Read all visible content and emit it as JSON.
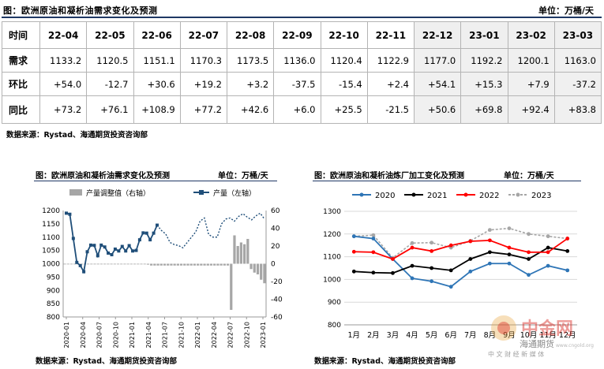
{
  "header": {
    "title": "图：欧洲原油和凝析油需求变化及预测",
    "unit": "单位：万桶/天"
  },
  "table": {
    "corner": "时间",
    "columns": [
      "22-04",
      "22-05",
      "22-06",
      "22-07",
      "22-08",
      "22-09",
      "22-10",
      "22-11",
      "22-12",
      "23-01",
      "23-02",
      "23-03"
    ],
    "rows": [
      {
        "label": "需求",
        "values": [
          "1133.2",
          "1120.5",
          "1151.1",
          "1170.3",
          "1173.5",
          "1136.0",
          "1120.4",
          "1122.9",
          "1177.0",
          "1192.2",
          "1200.1",
          "1163.0"
        ]
      },
      {
        "label": "环比",
        "values": [
          "+54.0",
          "-12.7",
          "+30.6",
          "+19.2",
          "+3.2",
          "-37.5",
          "-15.4",
          "+2.4",
          "+54.1",
          "+15.3",
          "+7.9",
          "-37.2"
        ]
      },
      {
        "label": "同比",
        "values": [
          "+73.2",
          "+76.1",
          "+108.9",
          "+77.2",
          "+42.6",
          "+6.0",
          "+25.5",
          "-21.5",
          "+50.6",
          "+69.8",
          "+92.4",
          "+83.8"
        ]
      }
    ]
  },
  "source_top": "数据来源：Rystad、海通期货投资咨询部",
  "left_chart": {
    "title": "图：欧洲原油和凝析油需求变化及预测",
    "unit": "单位：万桶/天",
    "source": "数据来源：Rystad、海通期货投资咨询部"
  },
  "right_chart": {
    "title": "图：欧洲原油和凝析油炼厂加工变化及预测",
    "unit": "单位：万桶/天",
    "source": "数据来源：Rystad、海通期货投资咨询部"
  },
  "watermark": {
    "name": "中金网",
    "sub": "海通期货",
    "tagline": "中 文 财 经 新 媒 体",
    "url": "www.cngold.org",
    "colors": {
      "red": "#d9241c",
      "gold": "#e8a33a"
    }
  },
  "chart_data": [
    {
      "type": "bar+line",
      "title": "",
      "legend": [
        "产量调整值（右轴）",
        "产量（左轴）"
      ],
      "legend_position": "top",
      "x_tick_labels": [
        "2020-01",
        "2020-04",
        "2020-07",
        "2020-10",
        "2021-01",
        "2021-04",
        "2021-07",
        "2021-10",
        "2022-01",
        "2022-04",
        "2022-07",
        "2022-10",
        "2023-01"
      ],
      "left_axis": {
        "ylim": [
          800,
          1200
        ],
        "ticks": [
          800,
          850,
          900,
          950,
          1000,
          1050,
          1100,
          1150,
          1200
        ]
      },
      "right_axis": {
        "ylim": [
          -60,
          60
        ],
        "ticks": [
          -60,
          -40,
          -20,
          0,
          20,
          40,
          60
        ]
      },
      "series": [
        {
          "name": "产量（左轴）",
          "axis": "left",
          "color": "#1f4e79",
          "style": "solid-marker",
          "values": [
            1190,
            1186,
            1095,
            1005,
            993,
            970,
            1045,
            1070,
            1069,
            1030,
            1070,
            1063,
            1040,
            1034,
            1055,
            1048,
            1065,
            1048,
            1068,
            1048,
            1050,
            1090,
            1116,
            1115,
            1090,
            1115,
            1145
          ]
        },
        {
          "name": "产量（左轴）-预测",
          "axis": "left",
          "color": "#1f4e79",
          "style": "dotted",
          "values": [
            1145,
            1125,
            1112,
            1080,
            1072,
            1068,
            1060,
            1080,
            1100,
            1120,
            1160,
            1172,
            1110,
            1100,
            1100,
            1150,
            1168,
            1172,
            1160,
            1178,
            1188,
            1175,
            1165,
            1180,
            1190,
            1168
          ]
        },
        {
          "name": "产量调整值（右轴）",
          "axis": "right",
          "color": "#a6a6a6",
          "values": [
            0,
            0,
            0,
            0,
            0,
            0,
            0,
            0,
            0,
            0,
            0,
            0,
            0,
            0,
            0,
            0,
            0,
            0,
            0,
            0,
            0,
            0,
            0,
            0,
            0,
            -1,
            -2,
            -2,
            -2,
            -2,
            -2,
            -2,
            -2,
            -2,
            -2,
            -2,
            -2,
            -2,
            -2,
            -2,
            -2,
            -2,
            -2,
            -2,
            -2,
            -2,
            -2,
            -2,
            -2,
            -2,
            -52,
            32,
            20,
            24,
            22,
            28,
            -6,
            -10,
            -12,
            -18,
            -22
          ]
        }
      ]
    },
    {
      "type": "line",
      "title": "",
      "legend": [
        "2020",
        "2021",
        "2022",
        "2023"
      ],
      "legend_position": "top",
      "categories": [
        "1月",
        "2月",
        "3月",
        "4月",
        "5月",
        "6月",
        "7月",
        "8月",
        "9月",
        "10月",
        "11月",
        "12月"
      ],
      "ylim": [
        800,
        1300
      ],
      "y_ticks": [
        800,
        900,
        1000,
        1100,
        1200,
        1300
      ],
      "series": [
        {
          "name": "2020",
          "color": "#2e75b6",
          "values": [
            1190,
            1180,
            1090,
            1005,
            992,
            968,
            1035,
            1070,
            1070,
            1020,
            1060,
            1040
          ]
        },
        {
          "name": "2021",
          "color": "#000000",
          "values": [
            1035,
            1030,
            1028,
            1060,
            1050,
            1040,
            1090,
            1120,
            1110,
            1090,
            1140,
            1125
          ]
        },
        {
          "name": "2022",
          "color": "#ff0000",
          "values": [
            1122,
            1120,
            1090,
            1140,
            1125,
            1150,
            1168,
            1172,
            1140,
            1120,
            1120,
            1180
          ]
        },
        {
          "name": "2023",
          "color": "#a6a6a6",
          "style": "dotted",
          "values": [
            1190,
            1195,
            1095,
            1160,
            1162,
            1140,
            1170,
            1218,
            1225,
            1200,
            1190,
            1180
          ]
        }
      ]
    }
  ]
}
